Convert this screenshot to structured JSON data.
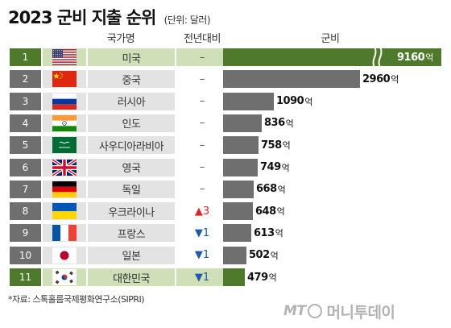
{
  "chart_data": {
    "type": "bar",
    "title": "2023 군비 지출 순위",
    "unit_note": "(단위: 달러)",
    "columns": {
      "country": "국가명",
      "prev": "전년대비",
      "value": "군비"
    },
    "value_unit": "억",
    "rows": [
      {
        "rank": "1",
        "flag": "us-flag",
        "name": "미국",
        "prev": "–",
        "prev_dir": "none",
        "value": 9160,
        "value_label": "9160",
        "highlight": true,
        "broken_bar": true
      },
      {
        "rank": "2",
        "flag": "china-flag",
        "name": "중국",
        "prev": "–",
        "prev_dir": "none",
        "value": 2960,
        "value_label": "2960"
      },
      {
        "rank": "3",
        "flag": "russia-flag",
        "name": "러시아",
        "prev": "–",
        "prev_dir": "none",
        "value": 1090,
        "value_label": "1090"
      },
      {
        "rank": "4",
        "flag": "india-flag",
        "name": "인도",
        "prev": "–",
        "prev_dir": "none",
        "value": 836,
        "value_label": "836"
      },
      {
        "rank": "5",
        "flag": "saudi-flag",
        "name": "사우디아라비아",
        "prev": "–",
        "prev_dir": "none",
        "value": 758,
        "value_label": "758"
      },
      {
        "rank": "6",
        "flag": "uk-flag",
        "name": "영국",
        "prev": "–",
        "prev_dir": "none",
        "value": 749,
        "value_label": "749"
      },
      {
        "rank": "7",
        "flag": "germany-flag",
        "name": "독일",
        "prev": "–",
        "prev_dir": "none",
        "value": 668,
        "value_label": "668"
      },
      {
        "rank": "8",
        "flag": "ukraine-flag",
        "name": "우크라이나",
        "prev": "▲3",
        "prev_dir": "up",
        "value": 648,
        "value_label": "648"
      },
      {
        "rank": "9",
        "flag": "france-flag",
        "name": "프랑스",
        "prev": "▼1",
        "prev_dir": "down",
        "value": 613,
        "value_label": "613"
      },
      {
        "rank": "10",
        "flag": "japan-flag",
        "name": "일본",
        "prev": "▼1",
        "prev_dir": "down",
        "value": 502,
        "value_label": "502"
      },
      {
        "rank": "11",
        "flag": "korea-flag",
        "name": "대한민국",
        "prev": "▼1",
        "prev_dir": "down",
        "value": 479,
        "value_label": "479",
        "highlight": true
      }
    ]
  },
  "source": "*자료: 스톡홀름국제평화연구소(SIPRI)",
  "watermark": {
    "mt": "MT",
    "name": "머니투데이"
  },
  "colors": {
    "bar": "#6f6f6f",
    "highlight_bar": "#4f7a2c",
    "highlight_cell": "#cfe0b9",
    "cell": "#e3e3e3",
    "up": "#d62a2a",
    "down": "#1e5aa8"
  }
}
